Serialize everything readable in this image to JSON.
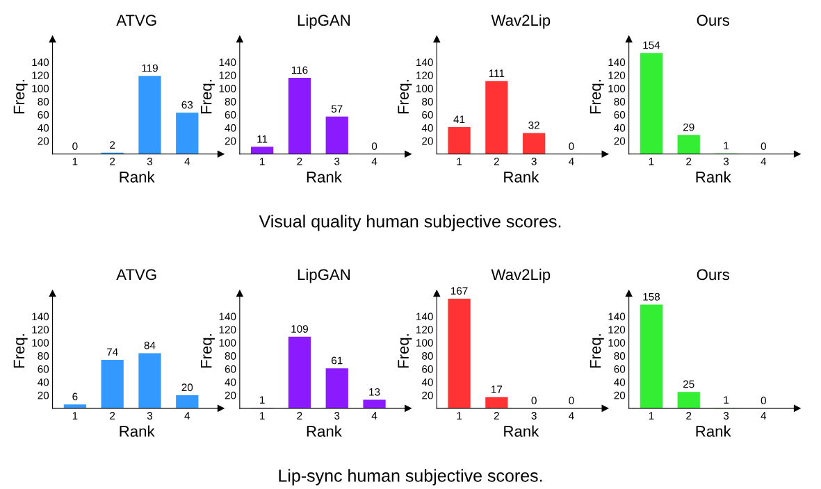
{
  "chart_data": [
    {
      "type": "bar",
      "title": "ATVG",
      "xlabel": "Rank",
      "ylabel": "Freq.",
      "categories": [
        "1",
        "2",
        "3",
        "4"
      ],
      "values": [
        0,
        2,
        119,
        63
      ],
      "color": "#3399ff",
      "ylim": [
        0,
        175
      ],
      "yticks": [
        20,
        40,
        60,
        80,
        100,
        120,
        140
      ],
      "data_labels": true,
      "annotations": [
        "Visual quality human subjective scores."
      ]
    },
    {
      "type": "bar",
      "title": "LipGAN",
      "xlabel": "Rank",
      "ylabel": "Freq.",
      "categories": [
        "1",
        "2",
        "3",
        "4"
      ],
      "values": [
        11,
        116,
        57,
        0
      ],
      "color": "#8c1aff",
      "ylim": [
        0,
        175
      ],
      "yticks": [
        20,
        40,
        60,
        80,
        100,
        120,
        140
      ],
      "data_labels": true
    },
    {
      "type": "bar",
      "title": "Wav2Lip",
      "xlabel": "Rank",
      "ylabel": "Freq.",
      "categories": [
        "1",
        "2",
        "3",
        "4"
      ],
      "values": [
        41,
        111,
        32,
        0
      ],
      "color": "#ff3333",
      "ylim": [
        0,
        175
      ],
      "yticks": [
        20,
        40,
        60,
        80,
        100,
        120,
        140
      ],
      "data_labels": true
    },
    {
      "type": "bar",
      "title": "Ours",
      "xlabel": "Rank",
      "ylabel": "Freq.",
      "categories": [
        "1",
        "2",
        "3",
        "4"
      ],
      "values": [
        154,
        29,
        1,
        0
      ],
      "color": "#33ee33",
      "ylim": [
        0,
        175
      ],
      "yticks": [
        20,
        40,
        60,
        80,
        100,
        120,
        140
      ],
      "data_labels": true
    },
    {
      "type": "bar",
      "title": "ATVG",
      "xlabel": "Rank",
      "ylabel": "Freq.",
      "categories": [
        "1",
        "2",
        "3",
        "4"
      ],
      "values": [
        6,
        74,
        84,
        20
      ],
      "color": "#3399ff",
      "ylim": [
        0,
        175
      ],
      "yticks": [
        20,
        40,
        60,
        80,
        100,
        120,
        140
      ],
      "data_labels": true,
      "annotations": [
        "Lip-sync human subjective scores."
      ]
    },
    {
      "type": "bar",
      "title": "LipGAN",
      "xlabel": "Rank",
      "ylabel": "Freq.",
      "categories": [
        "1",
        "2",
        "3",
        "4"
      ],
      "values": [
        1,
        109,
        61,
        13
      ],
      "color": "#8c1aff",
      "ylim": [
        0,
        175
      ],
      "yticks": [
        20,
        40,
        60,
        80,
        100,
        120,
        140
      ],
      "data_labels": true
    },
    {
      "type": "bar",
      "title": "Wav2Lip",
      "xlabel": "Rank",
      "ylabel": "Freq.",
      "categories": [
        "1",
        "2",
        "3",
        "4"
      ],
      "values": [
        167,
        17,
        0,
        0
      ],
      "color": "#ff3333",
      "ylim": [
        0,
        175
      ],
      "yticks": [
        20,
        40,
        60,
        80,
        100,
        120,
        140
      ],
      "data_labels": true
    },
    {
      "type": "bar",
      "title": "Ours",
      "xlabel": "Rank",
      "ylabel": "Freq.",
      "categories": [
        "1",
        "2",
        "3",
        "4"
      ],
      "values": [
        158,
        25,
        1,
        0
      ],
      "color": "#33ee33",
      "ylim": [
        0,
        175
      ],
      "yticks": [
        20,
        40,
        60,
        80,
        100,
        120,
        140
      ],
      "data_labels": true
    }
  ]
}
